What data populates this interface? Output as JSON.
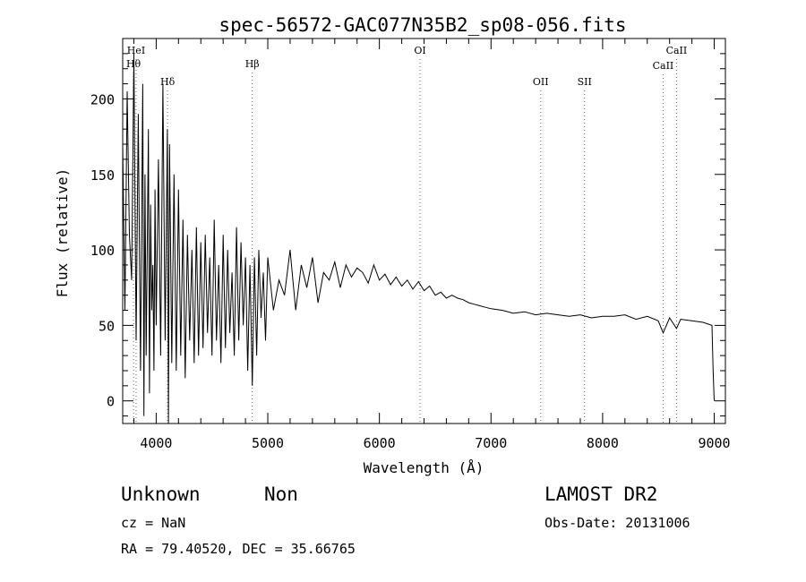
{
  "chart_data": {
    "type": "line",
    "title": "spec-56572-GAC077N35B2_sp08-056.fits",
    "xlabel": "Wavelength (Å)",
    "ylabel": "Flux (relative)",
    "xlim": [
      3700,
      9100
    ],
    "ylim": [
      -15,
      240
    ],
    "xticks": [
      4000,
      5000,
      6000,
      7000,
      8000,
      9000
    ],
    "yticks": [
      0,
      50,
      100,
      150,
      200
    ],
    "grid": false,
    "line_color": "#000000",
    "series": [
      {
        "x": [
          3700,
          3720,
          3740,
          3760,
          3780,
          3800,
          3820,
          3840,
          3860,
          3870,
          3880,
          3890,
          3900,
          3910,
          3920,
          3930,
          3940,
          3950,
          3960,
          3970,
          3980,
          3990,
          4000,
          4020,
          4040,
          4060,
          4080,
          4100,
          4110,
          4120,
          4140,
          4160,
          4180,
          4200,
          4220,
          4240,
          4260,
          4280,
          4300,
          4320,
          4340,
          4360,
          4380,
          4400,
          4420,
          4440,
          4460,
          4480,
          4500,
          4520,
          4540,
          4560,
          4580,
          4600,
          4620,
          4640,
          4660,
          4680,
          4700,
          4720,
          4740,
          4760,
          4780,
          4800,
          4820,
          4840,
          4861,
          4880,
          4900,
          4920,
          4940,
          4960,
          4980,
          5000,
          5050,
          5100,
          5150,
          5200,
          5250,
          5300,
          5350,
          5400,
          5450,
          5500,
          5550,
          5600,
          5650,
          5700,
          5750,
          5800,
          5850,
          5900,
          5950,
          6000,
          6050,
          6100,
          6150,
          6200,
          6250,
          6300,
          6350,
          6400,
          6450,
          6500,
          6550,
          6600,
          6650,
          6700,
          6750,
          6800,
          6850,
          6900,
          6950,
          7000,
          7100,
          7200,
          7300,
          7400,
          7500,
          7600,
          7700,
          7800,
          7900,
          8000,
          8100,
          8200,
          8300,
          8400,
          8498,
          8542,
          8600,
          8662,
          8700,
          8800,
          8900,
          8980,
          8990,
          9000
        ],
        "y": [
          170,
          60,
          205,
          110,
          80,
          230,
          40,
          190,
          20,
          120,
          210,
          -10,
          150,
          30,
          100,
          180,
          5,
          130,
          60,
          90,
          20,
          140,
          50,
          160,
          30,
          210,
          40,
          180,
          -15,
          170,
          25,
          150,
          20,
          140,
          30,
          120,
          15,
          110,
          40,
          100,
          25,
          115,
          30,
          105,
          35,
          110,
          45,
          95,
          30,
          120,
          40,
          90,
          25,
          110,
          35,
          100,
          45,
          85,
          30,
          115,
          40,
          105,
          50,
          95,
          20,
          90,
          10,
          95,
          30,
          100,
          55,
          85,
          40,
          95,
          60,
          80,
          70,
          100,
          60,
          90,
          75,
          95,
          65,
          85,
          80,
          92,
          75,
          90,
          82,
          88,
          85,
          78,
          90,
          80,
          84,
          77,
          82,
          76,
          80,
          74,
          79,
          73,
          76,
          70,
          72,
          68,
          70,
          68,
          67,
          65,
          64,
          63,
          62,
          61,
          60,
          58,
          59,
          57,
          58,
          57,
          56,
          57,
          55,
          56,
          56,
          57,
          54,
          56,
          53,
          45,
          55,
          48,
          54,
          53,
          52,
          50,
          20,
          0
        ]
      }
    ],
    "annotations": [
      {
        "label": "Hθ",
        "x": 3797
      },
      {
        "label": "HeI",
        "x": 3820
      },
      {
        "label": "Hδ",
        "x": 4102
      },
      {
        "label": "Hβ",
        "x": 4861
      },
      {
        "label": "OI",
        "x": 6364
      },
      {
        "label": "OII",
        "x": 7445
      },
      {
        "label": "SII",
        "x": 7838
      },
      {
        "label": "CaII",
        "x": 8542
      },
      {
        "label": "CaII",
        "x": 8662
      }
    ]
  },
  "info": {
    "object_class": "Unknown",
    "subclass": "Non",
    "survey": "LAMOST DR2",
    "redshift": "cz = NaN",
    "obs_date": "Obs-Date: 20131006",
    "coords": "RA =  79.40520, DEC =  35.66765"
  }
}
